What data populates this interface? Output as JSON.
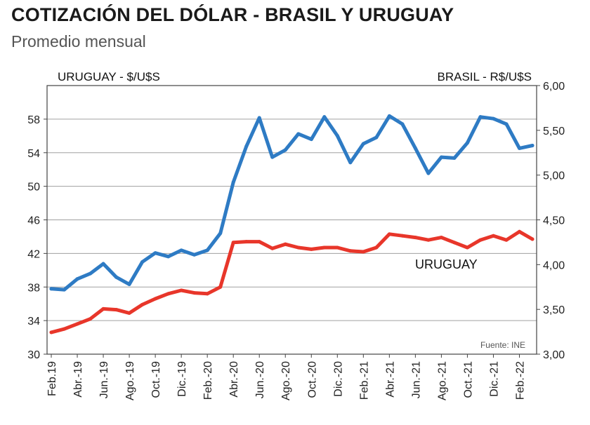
{
  "title": "COTIZACIÓN DEL DÓLAR - BRASIL Y URUGUAY",
  "subtitle": "Promedio mensual",
  "source": "Fuente: INE",
  "chart_data": {
    "type": "line",
    "left_axis_title": "URUGUAY - $/U$S",
    "right_axis_title": "BRASIL - R$/U$S",
    "y_left": {
      "min": 30,
      "max": 62,
      "ticks": [
        "30",
        "34",
        "38",
        "42",
        "46",
        "50",
        "54",
        "58"
      ],
      "tick_values": [
        30,
        34,
        38,
        42,
        46,
        50,
        54,
        58
      ]
    },
    "y_right": {
      "min": 3.0,
      "max": 6.0,
      "ticks": [
        "3,00",
        "3,50",
        "4,00",
        "4,50",
        "5,00",
        "5,50",
        "6,00"
      ],
      "tick_values": [
        3.0,
        3.5,
        4.0,
        4.5,
        5.0,
        5.5,
        6.0
      ]
    },
    "x_labels": [
      "Feb.19",
      "Abr.-19",
      "Jun.-19",
      "Ago.-19",
      "Oct.-19",
      "Dic.-19",
      "Feb.-20",
      "Abr.-20",
      "Jun.-20",
      "Ago.-20",
      "Oct.-20",
      "Dic.-20",
      "Feb.-21",
      "Abr.-21",
      "Jun.-21",
      "Ago.-21",
      "Oct.-21",
      "Dic.-21",
      "Feb.-22"
    ],
    "grid": true,
    "series": [
      {
        "name": "URUGUAY",
        "axis": "left",
        "color": "#e8362a",
        "values": [
          32.6,
          33.0,
          33.6,
          34.2,
          35.4,
          35.3,
          34.9,
          35.9,
          36.6,
          37.2,
          37.6,
          37.3,
          37.2,
          38.0,
          43.3,
          43.4,
          43.4,
          42.6,
          43.1,
          42.7,
          42.5,
          42.7,
          42.7,
          42.3,
          42.2,
          42.7,
          44.3,
          44.1,
          43.9,
          43.6,
          43.9,
          43.3,
          42.7,
          43.6,
          44.1,
          43.6,
          44.6,
          43.7
        ]
      },
      {
        "name": "",
        "axis": "right",
        "color": "#2e7bc4",
        "values": [
          3.73,
          3.72,
          3.84,
          3.9,
          4.01,
          3.86,
          3.78,
          4.03,
          4.13,
          4.09,
          4.16,
          4.11,
          4.16,
          4.35,
          4.92,
          5.32,
          5.64,
          5.2,
          5.28,
          5.46,
          5.4,
          5.65,
          5.44,
          5.14,
          5.35,
          5.42,
          5.66,
          5.57,
          5.3,
          5.02,
          5.2,
          5.19,
          5.36,
          5.65,
          5.63,
          5.57,
          5.3,
          5.33
        ]
      }
    ],
    "annotations": [
      {
        "text": "URUGUAY",
        "near_series": "URUGUAY",
        "position": "below line, right side"
      }
    ]
  }
}
